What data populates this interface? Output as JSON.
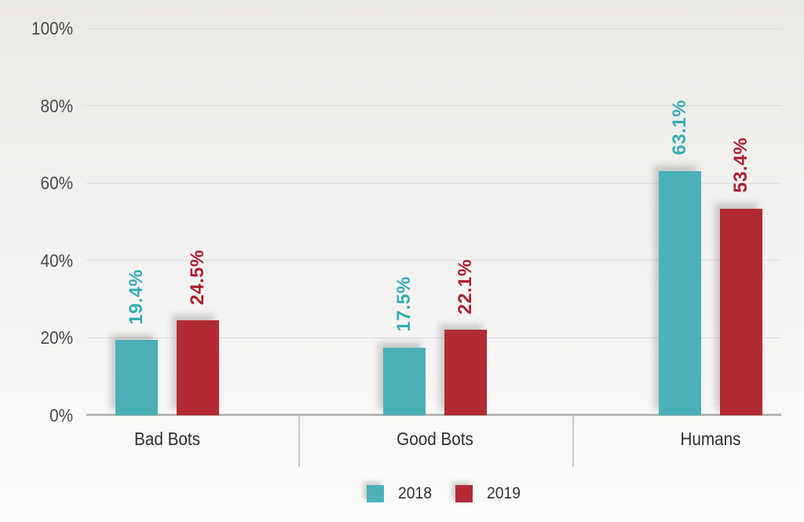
{
  "chart_data": {
    "type": "bar",
    "title": "",
    "categories": [
      "Bad Bots",
      "Good Bots",
      "Humans"
    ],
    "series": [
      {
        "name": "2018",
        "color": "#4bb1b9",
        "label_color": "#38adb7",
        "values": [
          19.4,
          17.5,
          63.1
        ],
        "labels": [
          "19.4%",
          "17.5%",
          "63.1%"
        ]
      },
      {
        "name": "2019",
        "color": "#b22b33",
        "label_color": "#ae1f31",
        "values": [
          24.5,
          22.1,
          53.4
        ],
        "labels": [
          "24.5%",
          "22.1%",
          "53.4%"
        ]
      }
    ],
    "y_ticks": [
      {
        "value": 0,
        "label": "0%"
      },
      {
        "value": 20,
        "label": "20%"
      },
      {
        "value": 40,
        "label": "40%"
      },
      {
        "value": 60,
        "label": "60%"
      },
      {
        "value": 80,
        "label": "80%"
      },
      {
        "value": 100,
        "label": "100%"
      }
    ],
    "ylim": [
      0,
      100
    ],
    "grid": true,
    "legend_position": "bottom"
  }
}
